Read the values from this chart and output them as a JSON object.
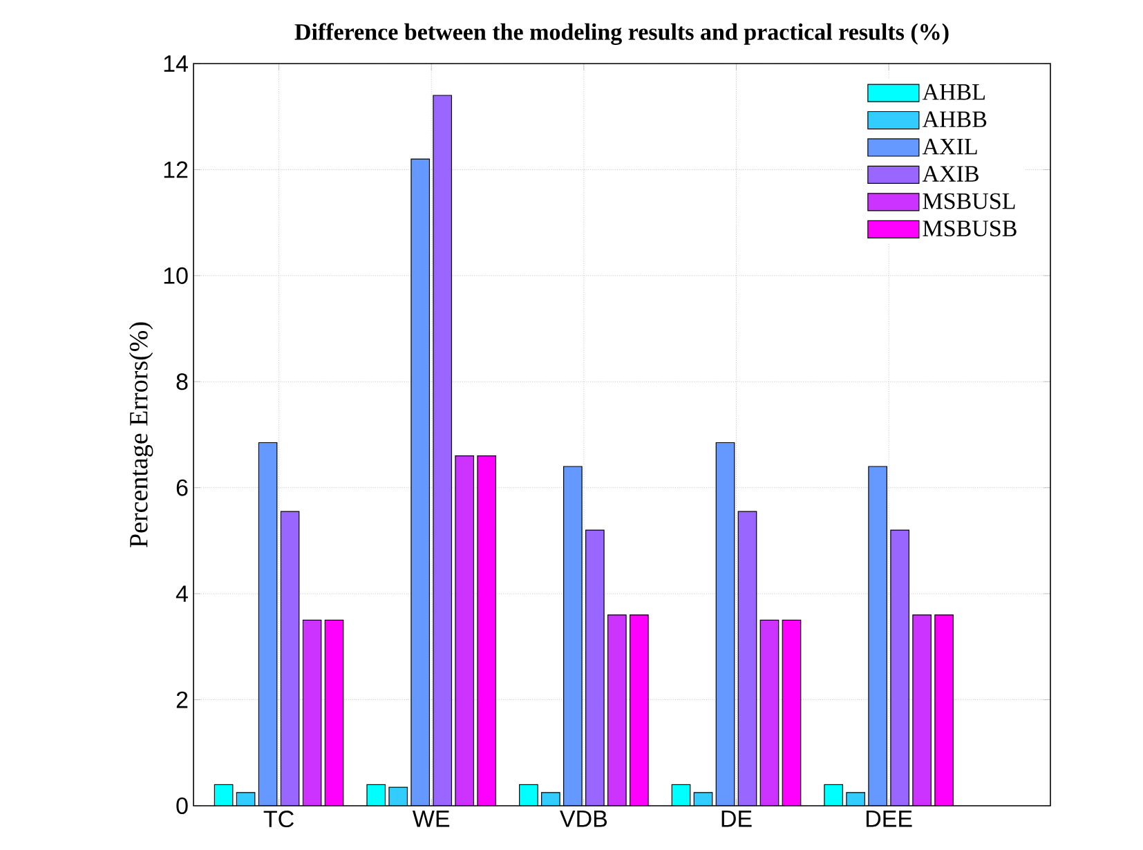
{
  "chart_data": {
    "type": "bar",
    "title": "Difference between the modeling results and practical results (%)",
    "ylabel": "Percentage Errors(%)",
    "categories": [
      "TC",
      "WE",
      "VDB",
      "DE",
      "DEE"
    ],
    "series": [
      {
        "name": "AHBL",
        "color": "#00ffff",
        "values": [
          0.4,
          0.4,
          0.4,
          0.4,
          0.4
        ]
      },
      {
        "name": "AHBB",
        "color": "#33ccff",
        "values": [
          0.25,
          0.35,
          0.25,
          0.25,
          0.25
        ]
      },
      {
        "name": "AXIL",
        "color": "#6699ff",
        "values": [
          6.85,
          12.2,
          6.4,
          6.85,
          6.4
        ]
      },
      {
        "name": "AXIB",
        "color": "#9966ff",
        "values": [
          5.55,
          13.4,
          5.2,
          5.55,
          5.2
        ]
      },
      {
        "name": "MSBUSL",
        "color": "#cc33ff",
        "values": [
          3.5,
          6.6,
          3.6,
          3.5,
          3.6
        ]
      },
      {
        "name": "MSBUSB",
        "color": "#ff00ff",
        "values": [
          3.5,
          6.6,
          3.6,
          3.5,
          3.6
        ]
      }
    ],
    "ylim": [
      0,
      14
    ],
    "yticks": [
      0,
      2,
      4,
      6,
      8,
      10,
      12,
      14
    ],
    "grid": true,
    "legend": "top right"
  }
}
